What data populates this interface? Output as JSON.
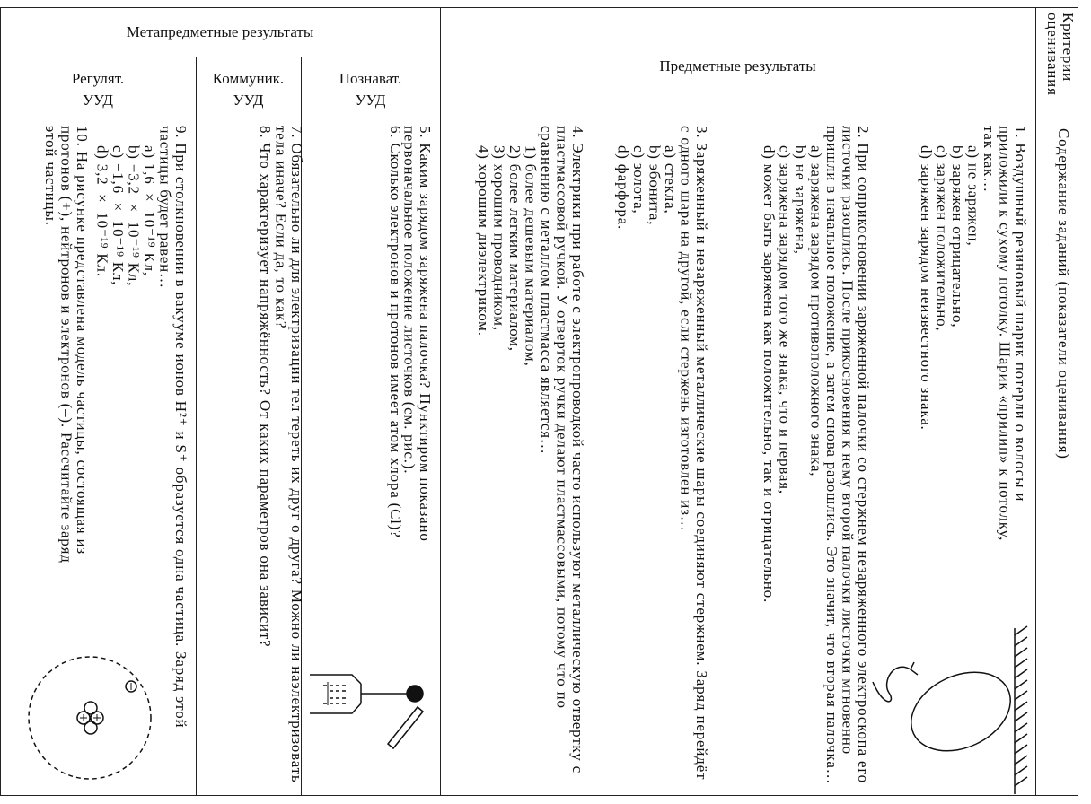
{
  "header": {
    "meta": "Метапредметные результаты",
    "regulatory": [
      "Регулят.",
      "УУД"
    ],
    "communicative": [
      "Коммуник.",
      "УУД"
    ],
    "cognitive": [
      "Познават.",
      "УУД"
    ],
    "subject": "Предметные результаты",
    "criteria": "Критерии оценивания",
    "content": "Содержание заданий (показатели оценивания)"
  },
  "items": [
    {
      "text": "1. Воздушный резиновый шарик потерли о волосы и приложили к сухому потолку. Шарик «прилип» к потолку, так как…",
      "options": [
        "а) не заряжен,",
        "b) заряжен отрицательно,",
        "c) заряжен положительно,",
        "d) заряжен зарядом неизвестного знака."
      ]
    },
    {
      "text": "2. При соприкосновении заряженной палочки со стержнем незаряженного электроскопа его листочки разошлись. После прикосновения к нему второй палочки листочки мгновенно пришли в начальное положение, а затем снова разошлись. Это значит, что вторая палочка…",
      "options": [
        "а) заряжена зарядом противоположного знака,",
        "b) не заряжена,",
        "c) заряжена зарядом того же знака, что и первая,",
        "d) может быть заряжена как положительно, так и отрицательно."
      ]
    },
    {
      "text": "3. Заряженный и незаряженный металлические шары соединяют стержнем. Заряд перейдёт с одного шара на другой, если стержень изготовлен из…",
      "options": [
        "а) стекла,",
        "b) эбонита,",
        "c) золота,",
        "d) фарфора."
      ]
    },
    {
      "text": "4. Электрики при работе с электропроводкой часто используют металлическую отвертку с пластмассовой ручкой. У отверток ручки делают пластмассовыми, потому что по сравнению с металлом пластмасса является…",
      "options": [
        "1) более дешевым материалом,",
        "2) более легким материалом,",
        "3) хорошим проводником,",
        "4) хорошим диэлектриком."
      ]
    },
    {
      "text": "5. Каким зарядом заряжена палочка? Пунктиром показано первоначальное положение листочков (см. рис.).",
      "options": []
    },
    {
      "text": "6. Сколько электронов и протонов имеет атом хлора (Cl)?",
      "options": []
    },
    {
      "text": "7. Обязательно ли для электризации тел тереть их друг о друга? Можно ли наэлектризовать тела иначе? Если да, то как?",
      "options": []
    },
    {
      "text": "8. Что характеризует напряжённость? От каких параметров она зависит?",
      "options": []
    },
    {
      "text": "9. При столкновении в вакууме ионов H²⁺ и S⁺ образуется одна частица. Заряд этой частицы будет равен…",
      "options": [
        "а) 1,6 × 10⁻¹⁹ Кл,",
        "b) −3,2 × 10⁻¹⁹ Кл,",
        "c) −1,6 × 10⁻¹⁹ Кл,",
        "d) 3,2 × 10⁻¹⁹ Кл."
      ]
    },
    {
      "text": "10. На рисунке представлена модель частицы, состоящая из протонов (+), нейтронов и электронов (–). Рассчитайте заряд этой частицы.",
      "options": []
    }
  ]
}
